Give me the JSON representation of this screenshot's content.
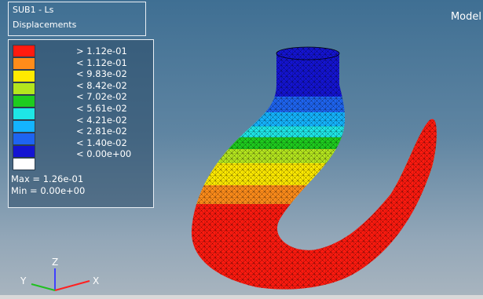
{
  "header": {
    "title_line1": "SUB1 - Ls",
    "title_line2": "Displacements",
    "view_label": "Model"
  },
  "legend": {
    "items": [
      {
        "label": "> 1.12e-01",
        "color": "#ff1a0f"
      },
      {
        "label": "< 1.12e-01",
        "color": "#ff8c1a"
      },
      {
        "label": "< 9.83e-02",
        "color": "#ffea00"
      },
      {
        "label": "< 8.42e-02",
        "color": "#b4e61e"
      },
      {
        "label": "< 7.02e-02",
        "color": "#1ecc1e"
      },
      {
        "label": "< 5.61e-02",
        "color": "#1ee6e6"
      },
      {
        "label": "< 4.21e-02",
        "color": "#14b4ff"
      },
      {
        "label": "< 2.81e-02",
        "color": "#1e64f0"
      },
      {
        "label": "< 1.40e-02",
        "color": "#1414d2"
      },
      {
        "label": "< 0.00e+00",
        "color": "#ffffff"
      }
    ],
    "max_text": "Max = 1.26e-01",
    "min_text": "Min = 0.00e+00"
  },
  "triad": {
    "x_label": "X",
    "y_label": "Y",
    "z_label": "Z"
  }
}
